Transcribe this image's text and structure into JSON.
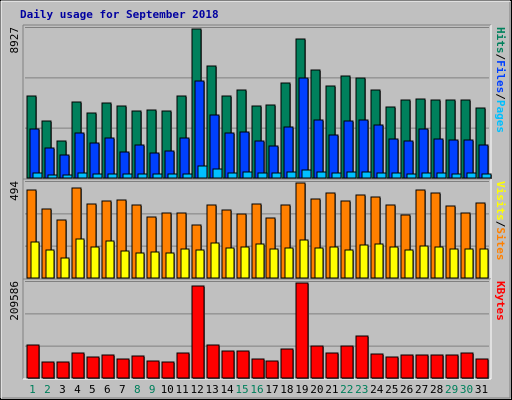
{
  "chart_data": {
    "type": "bar",
    "title": "Daily usage for September 2018",
    "days": [
      "1",
      "2",
      "3",
      "4",
      "5",
      "6",
      "7",
      "8",
      "9",
      "10",
      "11",
      "12",
      "13",
      "14",
      "15",
      "16",
      "17",
      "18",
      "19",
      "20",
      "21",
      "22",
      "23",
      "24",
      "25",
      "26",
      "27",
      "28",
      "29",
      "30",
      "31"
    ],
    "weekend_days": [
      "1",
      "2",
      "8",
      "9",
      "15",
      "16",
      "22",
      "23",
      "29",
      "30"
    ],
    "panels": [
      {
        "name": "hits-files-pages",
        "ymax_label": "8927",
        "ymax": 8927,
        "legend": [
          "Pages",
          "/",
          "Files",
          "/",
          "Hits"
        ],
        "series": [
          {
            "name": "Hits",
            "values": [
              4900,
              3400,
              2200,
              4550,
              3900,
              4500,
              4300,
              4000,
              4050,
              4000,
              4900,
              8927,
              6700,
              4900,
              5300,
              4300,
              4350,
              5700,
              8300,
              6500,
              5500,
              6100,
              6000,
              5300,
              4250,
              4700,
              4750,
              4650,
              4650,
              4650,
              4200
            ]
          },
          {
            "name": "Files",
            "values": [
              2950,
              1800,
              1350,
              2700,
              2100,
              2400,
              1550,
              2000,
              1500,
              1600,
              2400,
              5800,
              3800,
              2700,
              2750,
              2200,
              1900,
              3050,
              6000,
              3500,
              2600,
              3400,
              3500,
              3150,
              2350,
              2200,
              2950,
              2350,
              2300,
              2300,
              1950
            ]
          },
          {
            "name": "Pages",
            "values": [
              300,
              200,
              200,
              280,
              230,
              250,
              220,
              230,
              240,
              250,
              260,
              700,
              550,
              300,
              330,
              280,
              270,
              350,
              500,
              380,
              290,
              330,
              340,
              320,
              270,
              260,
              290,
              270,
              260,
              270,
              250
            ]
          }
        ],
        "colors": [
          "#00805c",
          "#0040ff",
          "#00c0ff"
        ]
      },
      {
        "name": "visits-sites",
        "ymax_label": "494",
        "ymax": 494,
        "legend": [
          "Sites",
          "/",
          "Visits",
          "/",
          "Visits"
        ],
        "series": [
          {
            "name": "Visits",
            "values": [
              460,
              360,
              300,
              468,
              385,
              400,
              405,
              380,
              315,
              340,
              340,
              275,
              380,
              355,
              335,
              385,
              310,
              380,
              494,
              410,
              440,
              400,
              430,
              420,
              380,
              330,
              460,
              440,
              375,
              340,
              390
            ]
          },
          {
            "name": "Sites",
            "values": [
              185,
              145,
              105,
              205,
              160,
              190,
              140,
              130,
              135,
              130,
              150,
              145,
              180,
              155,
              160,
              175,
              150,
              155,
              195,
              155,
              160,
              145,
              170,
              175,
              160,
              145,
              165,
              160,
              150,
              150,
              150
            ]
          }
        ],
        "colors": [
          "#ff8000",
          "#ffff00"
        ]
      },
      {
        "name": "kbytes",
        "ymax_label": "209586",
        "ymax": 209586,
        "legend": [
          "KBytes"
        ],
        "series": [
          {
            "name": "KBytes",
            "values": [
              72000,
              36000,
              36000,
              55000,
              47000,
              50000,
              42000,
              48000,
              38000,
              36000,
              55000,
              203000,
              72000,
              60000,
              60000,
              42000,
              38000,
              65000,
              209586,
              70000,
              56000,
              70000,
              92000,
              54000,
              46000,
              50000,
              50000,
              50000,
              50000,
              55000,
              43000
            ]
          }
        ],
        "colors": [
          "#ff0000"
        ]
      }
    ]
  }
}
